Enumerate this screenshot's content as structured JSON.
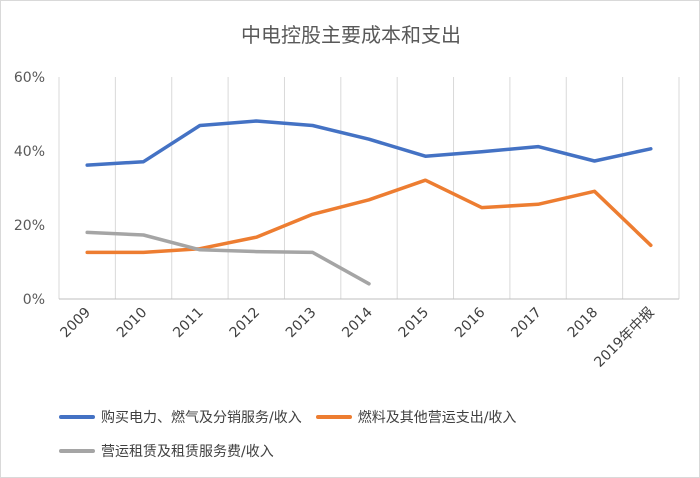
{
  "chart_data": {
    "type": "line",
    "title": "中电控股主要成本和支出",
    "categories": [
      "2009",
      "2010",
      "2011",
      "2012",
      "2013",
      "2014",
      "2015",
      "2016",
      "2017",
      "2018",
      "2019年中报"
    ],
    "ylim": [
      0,
      60
    ],
    "yticks": [
      0,
      20,
      40,
      60
    ],
    "ytick_labels": [
      "0%",
      "20%",
      "40%",
      "60%"
    ],
    "grid": "vertical",
    "legend_position": "bottom",
    "series": [
      {
        "name": "购买电力、燃气及分销服务/收入",
        "color": "#4472C4",
        "values": [
          36.2,
          37.1,
          46.9,
          48.1,
          46.9,
          43.2,
          38.6,
          39.8,
          41.2,
          37.3,
          40.6
        ]
      },
      {
        "name": "燃料及其他营运支出/收入",
        "color": "#ED7D31",
        "values": [
          12.6,
          12.6,
          13.6,
          16.7,
          22.9,
          26.8,
          32.1,
          24.7,
          25.6,
          29.1,
          14.5
        ]
      },
      {
        "name": "营运租赁及租赁服务费/收入",
        "color": "#A5A5A5",
        "values": [
          18.0,
          17.3,
          13.3,
          12.8,
          12.6,
          4.1,
          null,
          null,
          null,
          null,
          null
        ]
      }
    ]
  }
}
